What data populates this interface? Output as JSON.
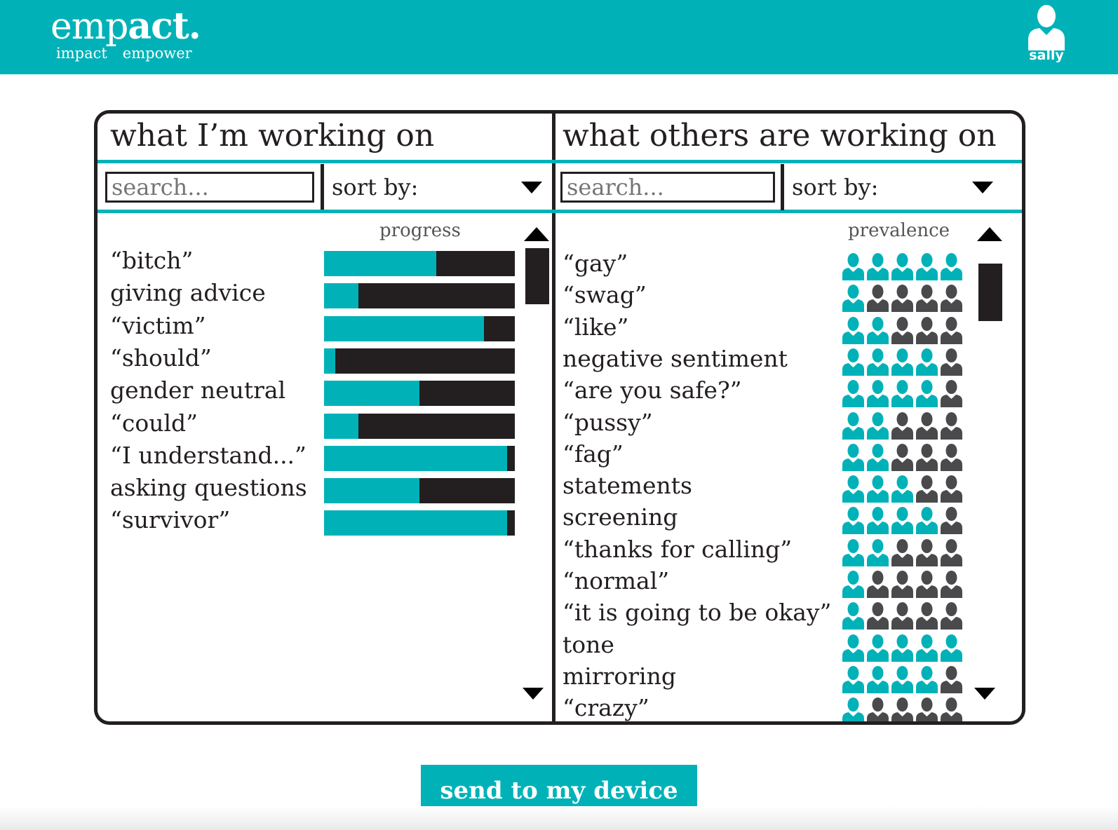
{
  "brand": {
    "logo_light": "emp",
    "logo_bold": "act.",
    "tag1": "impact",
    "tag2": "empower"
  },
  "user": {
    "name": "sally",
    "icon": "user-icon"
  },
  "left": {
    "title": "what I’m working on",
    "search_placeholder": "search...",
    "sort_label": "sort by:",
    "column_header": "progress",
    "items": [
      {
        "label": "“bitch”",
        "progress": 0.59
      },
      {
        "label": "giving advice",
        "progress": 0.18
      },
      {
        "label": "“victim”",
        "progress": 0.84
      },
      {
        "label": "“should”",
        "progress": 0.06
      },
      {
        "label": "gender neutral",
        "progress": 0.5
      },
      {
        "label": "“could”",
        "progress": 0.18
      },
      {
        "label": "“I understand...”",
        "progress": 0.96
      },
      {
        "label": "asking questions",
        "progress": 0.5
      },
      {
        "label": "“survivor”",
        "progress": 0.96
      }
    ]
  },
  "right": {
    "title": "what others are working on",
    "search_placeholder": "search...",
    "sort_label": "sort by:",
    "column_header": "prevalence",
    "items": [
      {
        "label": "“gay”",
        "prevalence": 5
      },
      {
        "label": "“swag”",
        "prevalence": 1
      },
      {
        "label": "“like”",
        "prevalence": 2
      },
      {
        "label": "negative sentiment",
        "prevalence": 4
      },
      {
        "label": "“are you safe?”",
        "prevalence": 4
      },
      {
        "label": "“pussy”",
        "prevalence": 2
      },
      {
        "label": "“fag”",
        "prevalence": 2
      },
      {
        "label": "statements",
        "prevalence": 3
      },
      {
        "label": "screening",
        "prevalence": 4
      },
      {
        "label": "“thanks for calling”",
        "prevalence": 2
      },
      {
        "label": "“normal”",
        "prevalence": 1
      },
      {
        "label": "“it is going to be okay”",
        "prevalence": 1
      },
      {
        "label": "tone",
        "prevalence": 5
      },
      {
        "label": "mirroring",
        "prevalence": 4
      },
      {
        "label": "“crazy”",
        "prevalence": 1
      }
    ]
  },
  "actions": {
    "send_label": "send to my  device"
  },
  "colors": {
    "accent": "#00b2b8",
    "dark": "#231f20",
    "inactive_person": "#4a4a4c"
  }
}
